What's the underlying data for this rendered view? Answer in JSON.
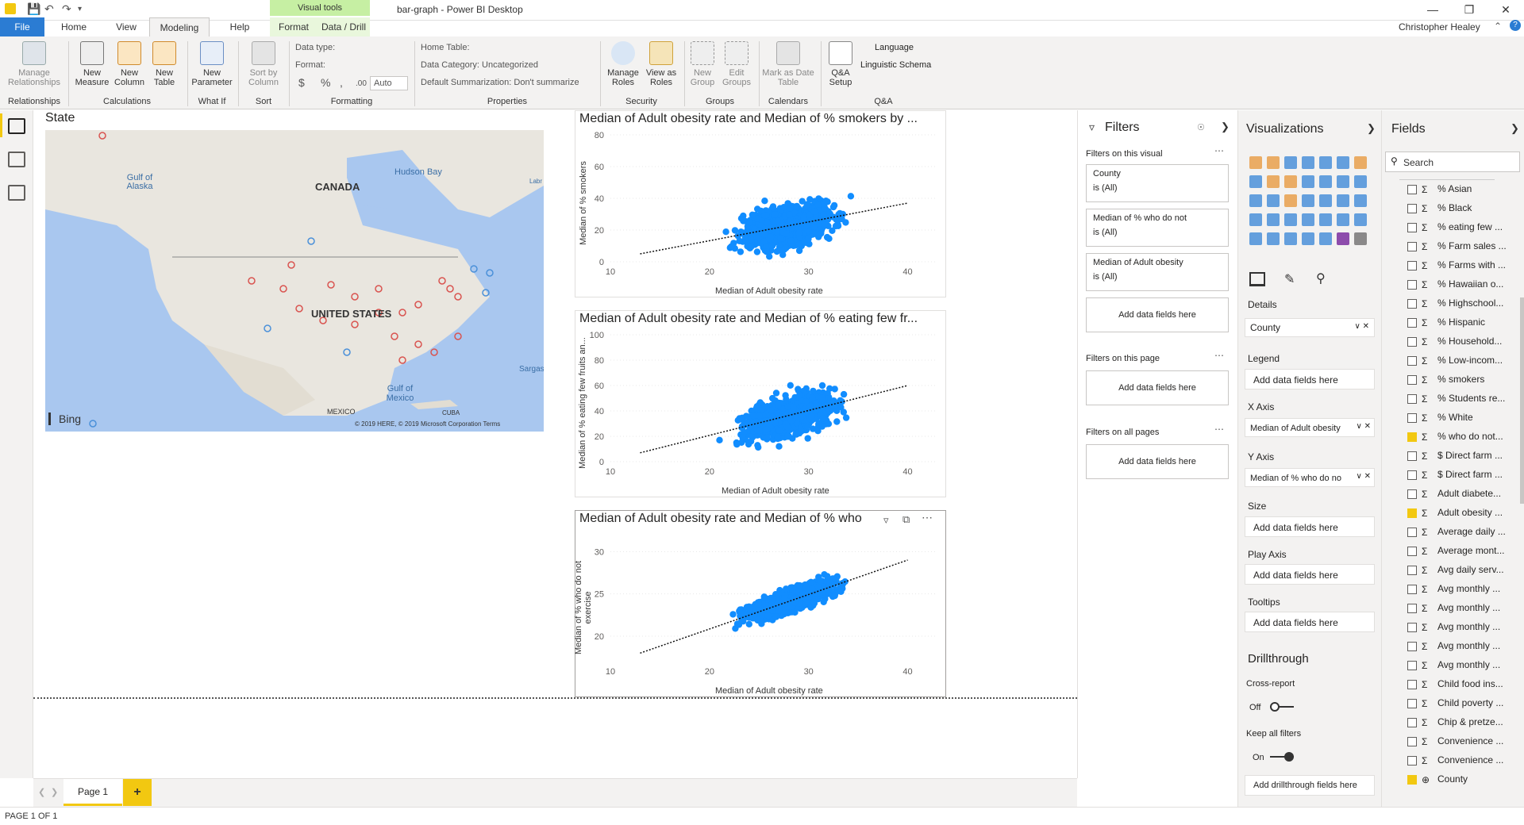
{
  "titlebar": {
    "context_tab": "Visual tools",
    "title": "bar-graph - Power BI Desktop",
    "user": "Christopher Healey"
  },
  "tabs": [
    "File",
    "Home",
    "View",
    "Modeling",
    "Help",
    "Format",
    "Data / Drill"
  ],
  "ribbon": {
    "relationships": {
      "button": "Manage Relationships",
      "group": "Relationships"
    },
    "calculations": {
      "buttons": [
        "New Measure",
        "New Column",
        "New Table"
      ],
      "group": "Calculations"
    },
    "whatif": {
      "button": "New Parameter",
      "group": "What If"
    },
    "sort": {
      "button": "Sort by Column",
      "group": "Sort"
    },
    "formatting": {
      "data_type": "Data type:",
      "format": "Format:",
      "currency": "$",
      "percent": "%",
      "comma": ",",
      "decimals": ".00",
      "auto": "Auto",
      "group": "Formatting"
    },
    "properties": {
      "home_table": "Home Table:",
      "data_category": "Data Category: Uncategorized",
      "default_summarization": "Default Summarization: Don't summarize",
      "group": "Properties"
    },
    "security": {
      "buttons": [
        "Manage Roles",
        "View as Roles"
      ],
      "group": "Security"
    },
    "groups": {
      "buttons": [
        "New Group",
        "Edit Groups"
      ],
      "group": "Groups"
    },
    "calendars": {
      "button": "Mark as Date Table",
      "group": "Calendars"
    },
    "qa": {
      "button": "Q&A Setup",
      "language": "Language",
      "linguistic_schema": "Linguistic Schema",
      "group": "Q&A"
    }
  },
  "canvas": {
    "map": {
      "title": "State",
      "labels": [
        "Gulf of Alaska",
        "CANADA",
        "Hudson Bay",
        "UNITED STATES",
        "Gulf of Mexico",
        "MEXICO",
        "CUBA",
        "Sargasso",
        "Labr"
      ],
      "bing": "Bing",
      "copyright": "© 2019 HERE, © 2019 Microsoft Corporation Terms"
    },
    "charts": [
      {
        "title": "Median of Adult obesity rate and Median of % smokers by ...",
        "xlabel": "Median of Adult obesity rate",
        "ylabel": "Median of % smokers"
      },
      {
        "title": "Median of Adult obesity rate and Median of % eating few fr...",
        "xlabel": "Median of Adult obesity rate",
        "ylabel": "Median of % eating few fruits an..."
      },
      {
        "title": "Median of Adult obesity rate and Median of % who",
        "xlabel": "Median of Adult obesity rate",
        "ylabel": "Median of % who do not exercise"
      }
    ]
  },
  "chart_data": [
    {
      "type": "scatter",
      "title": "Median of Adult obesity rate and Median of % smokers by ...",
      "xlabel": "Median of Adult obesity rate",
      "ylabel": "Median of % smokers",
      "xlim": [
        10,
        43
      ],
      "ylim": [
        0,
        80
      ],
      "xticks": [
        10,
        20,
        30,
        40
      ],
      "yticks": [
        0,
        20,
        40,
        60,
        80
      ],
      "trend": {
        "x": [
          13,
          40
        ],
        "y": [
          5,
          37
        ]
      },
      "color": "#118dff"
    },
    {
      "type": "scatter",
      "title": "Median of Adult obesity rate and Median of % eating few fr...",
      "xlabel": "Median of Adult obesity rate",
      "ylabel": "Median of % eating few fruits an...",
      "xlim": [
        10,
        43
      ],
      "ylim": [
        0,
        100
      ],
      "xticks": [
        10,
        20,
        30,
        40
      ],
      "yticks": [
        0,
        20,
        40,
        60,
        80,
        100
      ],
      "trend": {
        "x": [
          13,
          40
        ],
        "y": [
          7,
          60
        ]
      },
      "color": "#118dff"
    },
    {
      "type": "scatter",
      "title": "Median of Adult obesity rate and Median of % who",
      "xlabel": "Median of Adult obesity rate",
      "ylabel": "Median of % who do not exercise",
      "xlim": [
        10,
        43
      ],
      "ylim": [
        17,
        32
      ],
      "xticks": [
        10,
        20,
        30,
        40
      ],
      "yticks": [
        20,
        25,
        30
      ],
      "trend": {
        "x": [
          13,
          40
        ],
        "y": [
          18,
          29
        ]
      },
      "color": "#118dff"
    }
  ],
  "filters": {
    "title": "Filters",
    "on_visual": "Filters on this visual",
    "cards": [
      {
        "name": "County",
        "value": "is (All)"
      },
      {
        "name": "Median of % who do not",
        "value": "is (All)"
      },
      {
        "name": "Median of Adult obesity",
        "value": "is (All)"
      }
    ],
    "add": "Add data fields here",
    "on_page": "Filters on this page",
    "on_all": "Filters on all pages"
  },
  "visualizations": {
    "title": "Visualizations",
    "details": "Details",
    "details_value": "County",
    "legend": "Legend",
    "xaxis": "X Axis",
    "xaxis_value": "Median of Adult obesity",
    "yaxis": "Y Axis",
    "yaxis_value": "Median of % who do no",
    "size": "Size",
    "play_axis": "Play Axis",
    "tooltips": "Tooltips",
    "add": "Add data fields here",
    "drillthrough": "Drillthrough",
    "cross_report": "Cross-report",
    "off": "Off",
    "keep_all": "Keep all filters",
    "on": "On",
    "add_drill": "Add drillthrough fields here",
    "icon_colors": [
      "#e8a04c",
      "#e8a04c",
      "#4a90d9",
      "#4a90d9",
      "#4a90d9",
      "#4a90d9",
      "#e8a04c",
      "#4a90d9",
      "#e8a04c",
      "#e8a04c",
      "#4a90d9",
      "#4a90d9",
      "#4a90d9",
      "#4a90d9",
      "#4a90d9",
      "#4a90d9",
      "#e8a04c",
      "#4a90d9",
      "#4a90d9",
      "#4a90d9",
      "#4a90d9",
      "#4a90d9",
      "#4a90d9",
      "#4a90d9",
      "#4a90d9",
      "#4a90d9",
      "#4a90d9",
      "#4a90d9",
      "#4a90d9",
      "#4a90d9",
      "#4a90d9",
      "#4a90d9",
      "#4a90d9",
      "#7a2fa0",
      "#777777"
    ]
  },
  "fields": {
    "title": "Fields",
    "search_placeholder": "Search",
    "items": [
      {
        "label": "% Asian",
        "checked": false,
        "sigma": true
      },
      {
        "label": "% Black",
        "checked": false,
        "sigma": true
      },
      {
        "label": "% eating few ...",
        "checked": false,
        "sigma": true
      },
      {
        "label": "% Farm sales ...",
        "checked": false,
        "sigma": true
      },
      {
        "label": "% Farms with ...",
        "checked": false,
        "sigma": true
      },
      {
        "label": "% Hawaiian o...",
        "checked": false,
        "sigma": true
      },
      {
        "label": "% Highschool...",
        "checked": false,
        "sigma": true
      },
      {
        "label": "% Hispanic",
        "checked": false,
        "sigma": true
      },
      {
        "label": "% Household...",
        "checked": false,
        "sigma": true
      },
      {
        "label": "% Low-incom...",
        "checked": false,
        "sigma": true
      },
      {
        "label": "% smokers",
        "checked": false,
        "sigma": true
      },
      {
        "label": "% Students re...",
        "checked": false,
        "sigma": true
      },
      {
        "label": "% White",
        "checked": false,
        "sigma": true
      },
      {
        "label": "% who do not...",
        "checked": true,
        "sigma": true
      },
      {
        "label": "$ Direct farm ...",
        "checked": false,
        "sigma": true
      },
      {
        "label": "$ Direct farm ...",
        "checked": false,
        "sigma": true
      },
      {
        "label": "Adult diabete...",
        "checked": false,
        "sigma": true
      },
      {
        "label": "Adult obesity ...",
        "checked": true,
        "sigma": true
      },
      {
        "label": "Average daily ...",
        "checked": false,
        "sigma": true
      },
      {
        "label": "Average mont...",
        "checked": false,
        "sigma": true
      },
      {
        "label": "Avg daily serv...",
        "checked": false,
        "sigma": true
      },
      {
        "label": "Avg monthly ...",
        "checked": false,
        "sigma": true
      },
      {
        "label": "Avg monthly ...",
        "checked": false,
        "sigma": true
      },
      {
        "label": "Avg monthly ...",
        "checked": false,
        "sigma": true
      },
      {
        "label": "Avg monthly ...",
        "checked": false,
        "sigma": true
      },
      {
        "label": "Avg monthly ...",
        "checked": false,
        "sigma": true
      },
      {
        "label": "Child food ins...",
        "checked": false,
        "sigma": true
      },
      {
        "label": "Child poverty ...",
        "checked": false,
        "sigma": true
      },
      {
        "label": "Chip & pretze...",
        "checked": false,
        "sigma": true
      },
      {
        "label": "Convenience ...",
        "checked": false,
        "sigma": true
      },
      {
        "label": "Convenience ...",
        "checked": false,
        "sigma": true
      },
      {
        "label": "County",
        "checked": true,
        "sigma": false
      }
    ]
  },
  "pages": {
    "tab": "Page 1",
    "add": "+"
  },
  "status": "PAGE 1 OF 1"
}
